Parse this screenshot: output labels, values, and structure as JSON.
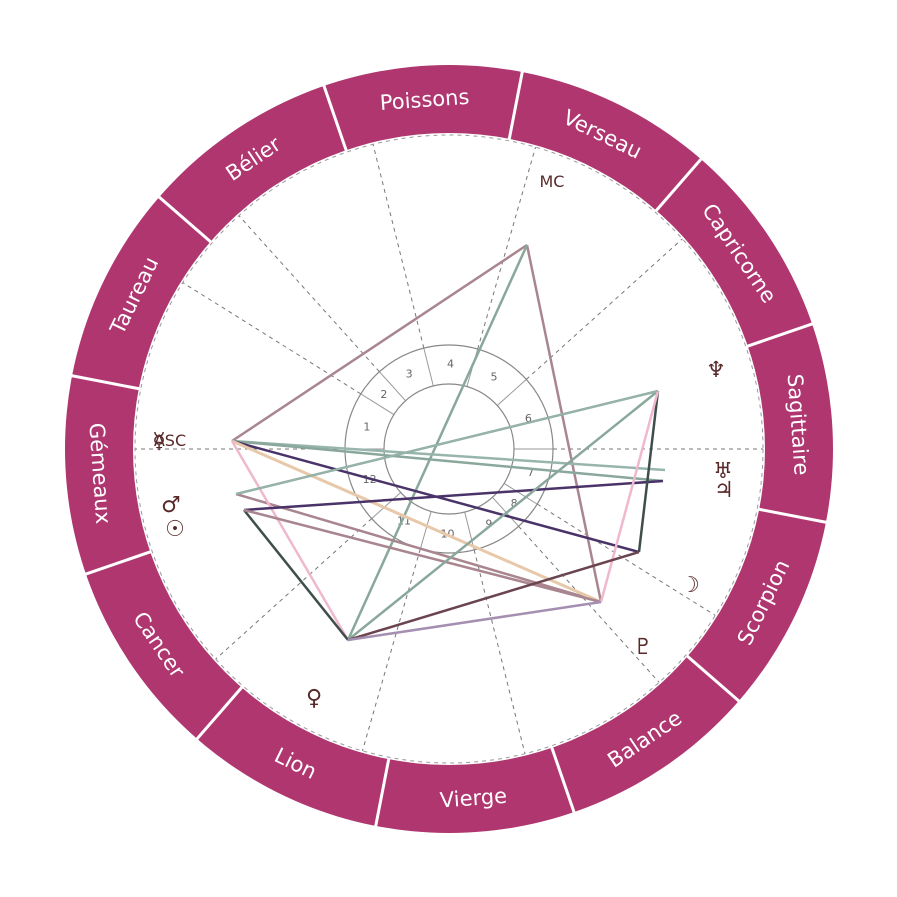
{
  "colors": {
    "zodiac_ring": "#b03670",
    "ring_border": "#ffffff",
    "sign_text": "#ffffff",
    "house_lines": "#777777",
    "glyph": "#5a2a2a",
    "house_number": "#666666"
  },
  "zodiac_signs": [
    "Poissons",
    "Verseau",
    "Capricorne",
    "Sagittaire",
    "Scorpion",
    "Balance",
    "Vierge",
    "Lion",
    "Cancer",
    "Gémeaux",
    "Taureau",
    "Bélier"
  ],
  "house_numbers": [
    "1",
    "2",
    "3",
    "4",
    "5",
    "6",
    "7",
    "8",
    "9",
    "10",
    "11",
    "12"
  ],
  "axes": {
    "asc": "ASC",
    "mc": "MC"
  },
  "planets": [
    {
      "name": "mercury",
      "glyph": "☿"
    },
    {
      "name": "mars",
      "glyph": "♂"
    },
    {
      "name": "sun",
      "glyph": "☉"
    },
    {
      "name": "venus",
      "glyph": "♀"
    },
    {
      "name": "pluto",
      "glyph": "♇"
    },
    {
      "name": "moon",
      "glyph": "☽"
    },
    {
      "name": "jupiter",
      "glyph": "♃"
    },
    {
      "name": "uranus",
      "glyph": "♅"
    },
    {
      "name": "neptune",
      "glyph": "♆"
    }
  ],
  "aspect_colors": [
    "#a9868f",
    "#8aa79b",
    "#4a3368",
    "#e7c9a9",
    "#f0b8cf",
    "#3f4d4b",
    "#6a4550",
    "#a48fb1",
    "#98b5ad"
  ]
}
